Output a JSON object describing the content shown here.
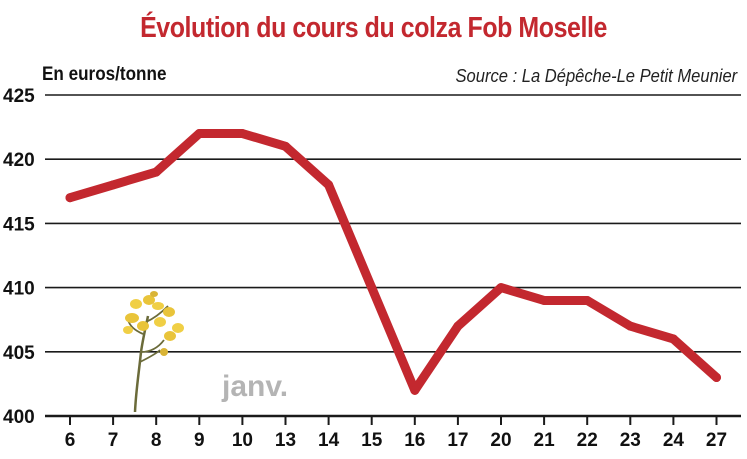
{
  "chart_data": {
    "type": "line",
    "title": "Évolution du cours du colza Fob Moselle",
    "ylabel": "En euros/tonne",
    "source": "Source : La Dépêche-Le Petit Meunier",
    "annotation": "janv.",
    "categories": [
      "6",
      "7",
      "8",
      "9",
      "10",
      "13",
      "14",
      "15",
      "16",
      "17",
      "20",
      "21",
      "22",
      "23",
      "24",
      "27"
    ],
    "series": [
      {
        "values": [
          417,
          418,
          419,
          422,
          422,
          421,
          418,
          410,
          402,
          407,
          410,
          409,
          409,
          407,
          406,
          403
        ]
      }
    ],
    "ylim": [
      400,
      425
    ],
    "yticks": [
      "400",
      "405",
      "410",
      "415",
      "420",
      "425"
    ],
    "grid": true,
    "line_color": "#c3282f"
  }
}
